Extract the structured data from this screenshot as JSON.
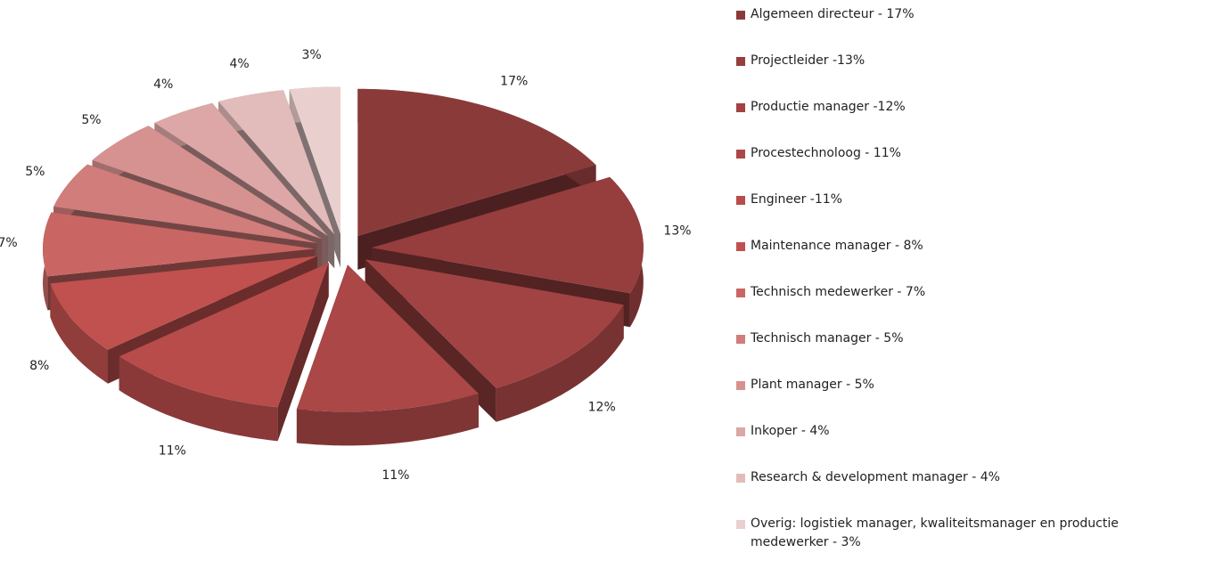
{
  "chart_data": {
    "type": "pie",
    "categories": [
      "Algemeen directeur - 17%",
      "Projectleider -13%",
      "Productie manager -12%",
      "Procestechnoloog - 11%",
      "Engineer -11%",
      "Maintenance manager - 8%",
      "Technisch medewerker - 7%",
      "Technisch manager - 5%",
      "Plant manager - 5%",
      "Inkoper - 4%",
      "Research & development manager - 4%",
      "Overig: logistiek manager, kwaliteitsmanager en productie medewerker - 3%"
    ],
    "values": [
      17,
      13,
      12,
      11,
      11,
      8,
      7,
      5,
      5,
      4,
      4,
      3
    ],
    "value_labels": [
      "17%",
      "13%",
      "12%",
      "11%",
      "11%",
      "8%",
      "7%",
      "5%",
      "5%",
      "4%",
      "4%",
      "3%"
    ],
    "colors": [
      "#8b3a3a",
      "#963d3d",
      "#a14343",
      "#ab4747",
      "#b84c4a",
      "#c0514f",
      "#c96664",
      "#d07d7b",
      "#d69290",
      "#dca7a6",
      "#e2bcbb",
      "#e9d0cf"
    ],
    "legend": "right"
  }
}
